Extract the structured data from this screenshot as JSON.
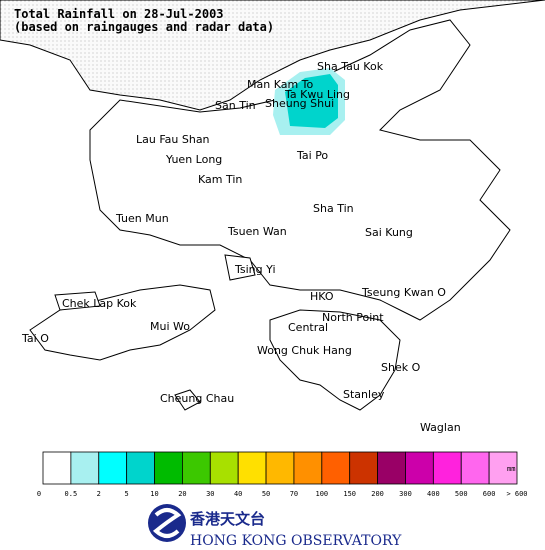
{
  "header": {
    "title": "Total Rainfall on 28-Jul-2003",
    "subtitle": "(based on raingauges and radar data)"
  },
  "places": [
    "Sha Tau Kok",
    "Man Kam To",
    "Ta Kwu Ling",
    "Sheung Shui",
    "San Tin",
    "Lau Fau Shan",
    "Yuen Long",
    "Kam Tin",
    "Tai Po",
    "Sha Tin",
    "Tuen Mun",
    "Tsuen Wan",
    "Sai Kung",
    "Tsing Yi",
    "Chek Lap Kok",
    "HKO",
    "Tseung Kwan O",
    "Mui Wo",
    "North Point",
    "Central",
    "Tai O",
    "Wong Chuk Hang",
    "Shek O",
    "Stanley",
    "Cheung Chau",
    "Waglan"
  ],
  "legend": {
    "unit": "mm",
    "colors": [
      "#ffffff",
      "#a8f0f0",
      "#00ffff",
      "#00d4cc",
      "#00bb00",
      "#3cc800",
      "#a8e000",
      "#ffe000",
      "#ffb800",
      "#ff9000",
      "#ff6000",
      "#cc3300",
      "#990066",
      "#cc00aa",
      "#ff22dd",
      "#ff66ee",
      "#ffa0f0"
    ],
    "labels": [
      "0",
      "0.5",
      "2",
      "5",
      "10",
      "20",
      "30",
      "40",
      "50",
      "70",
      "100",
      "150",
      "200",
      "300",
      "400",
      "500",
      "600",
      "> 600"
    ]
  },
  "footer": {
    "name_zh": "香港天文台",
    "name_en": "HONG KONG OBSERVATORY"
  }
}
